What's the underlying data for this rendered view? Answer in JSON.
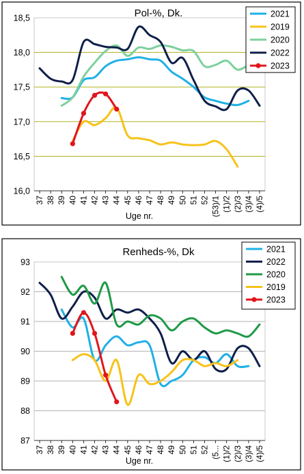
{
  "chart_data": [
    {
      "type": "line",
      "title": "Pol-%, Dk.",
      "xlabel": "Uge nr.",
      "ylabel": "",
      "categories": [
        "37",
        "38",
        "39",
        "40",
        "41",
        "42",
        "43",
        "44",
        "45",
        "46",
        "47",
        "48",
        "49",
        "50",
        "51",
        "52",
        "(53)/1",
        "(1)/2",
        "(2)/3",
        "(3)/4",
        "(4)/5"
      ],
      "ylim": [
        16.0,
        18.5
      ],
      "yticks": [
        "16,0",
        "16,5",
        "17,0",
        "17,5",
        "18,0",
        "18,5"
      ],
      "ytick_values": [
        16.0,
        16.5,
        17.0,
        17.5,
        18.0,
        18.5
      ],
      "grid": "horizontal, olive",
      "legend": "top-right",
      "series": [
        {
          "name": "2021",
          "color": "#1fb0e6",
          "marker": false,
          "values": [
            null,
            null,
            17.34,
            17.35,
            17.6,
            17.64,
            17.8,
            17.88,
            17.9,
            17.93,
            17.9,
            17.88,
            17.72,
            17.62,
            17.5,
            17.35,
            17.3,
            17.26,
            17.24,
            17.3,
            null
          ]
        },
        {
          "name": "2019",
          "color": "#f7c21a",
          "marker": false,
          "values": [
            null,
            null,
            null,
            16.72,
            17.0,
            16.95,
            17.05,
            17.2,
            16.8,
            16.76,
            16.73,
            16.67,
            16.7,
            16.67,
            16.66,
            16.67,
            16.72,
            16.6,
            16.35,
            null,
            null
          ]
        },
        {
          "name": "2020",
          "color": "#7dd09c",
          "marker": false,
          "values": [
            null,
            null,
            17.23,
            17.35,
            17.65,
            17.85,
            18.02,
            18.1,
            17.95,
            18.07,
            18.05,
            18.1,
            18.08,
            18.03,
            18.02,
            17.8,
            17.82,
            17.88,
            17.75,
            17.82,
            null
          ]
        },
        {
          "name": "2022",
          "color": "#0f1f4a",
          "marker": false,
          "values": [
            17.77,
            17.62,
            17.58,
            17.6,
            18.15,
            18.12,
            18.08,
            18.07,
            18.05,
            18.37,
            18.25,
            18.15,
            17.85,
            17.92,
            17.6,
            17.3,
            17.22,
            17.18,
            17.45,
            17.45,
            17.23
          ]
        },
        {
          "name": "2023",
          "color": "#e0161c",
          "marker": true,
          "values": [
            null,
            null,
            null,
            16.68,
            17.12,
            17.38,
            17.4,
            17.18,
            null,
            null,
            null,
            null,
            null,
            null,
            null,
            null,
            null,
            null,
            null,
            null,
            null
          ]
        }
      ]
    },
    {
      "type": "line",
      "title": "Renheds-%, Dk",
      "xlabel": "Uge nr.",
      "ylabel": "",
      "categories": [
        "37",
        "38",
        "39",
        "40",
        "41",
        "42",
        "43",
        "44",
        "45",
        "46",
        "47",
        "48",
        "49",
        "50",
        "51",
        "52",
        "(5...",
        "(1)/2",
        "(2)/3",
        "(3)/4",
        "(4)/5"
      ],
      "ylim": [
        87,
        93
      ],
      "yticks": [
        "87",
        "88",
        "89",
        "90",
        "91",
        "92",
        "93"
      ],
      "ytick_values": [
        87,
        88,
        89,
        90,
        91,
        92,
        93
      ],
      "grid": "horizontal, grey",
      "legend": "top-right",
      "series": [
        {
          "name": "2021",
          "color": "#1fb0e6",
          "marker": false,
          "values": [
            null,
            null,
            91.4,
            90.8,
            91.1,
            89.7,
            90.2,
            90.5,
            90.2,
            90.3,
            90.2,
            88.9,
            89.0,
            89.2,
            89.7,
            89.8,
            89.6,
            89.9,
            89.5,
            89.5,
            null
          ]
        },
        {
          "name": "2022",
          "color": "#0f1f4a",
          "marker": false,
          "values": [
            92.3,
            91.9,
            91.1,
            91.5,
            92.0,
            91.8,
            91.1,
            91.4,
            91.3,
            91.4,
            91.1,
            90.6,
            89.6,
            90.0,
            89.7,
            90.0,
            89.4,
            89.4,
            90.1,
            90.1,
            89.5
          ]
        },
        {
          "name": "2020",
          "color": "#1e9a47",
          "marker": false,
          "values": [
            null,
            null,
            92.5,
            91.9,
            92.2,
            91.6,
            92.3,
            90.9,
            91.0,
            90.9,
            91.2,
            91.1,
            90.7,
            91.0,
            91.1,
            90.8,
            90.6,
            90.7,
            90.6,
            90.5,
            90.9
          ]
        },
        {
          "name": "2019",
          "color": "#f7c21a",
          "marker": false,
          "values": [
            null,
            null,
            null,
            89.7,
            89.9,
            89.7,
            89.0,
            89.7,
            88.2,
            89.2,
            88.9,
            89.0,
            89.3,
            89.7,
            89.7,
            89.5,
            89.6,
            89.5,
            89.7,
            null,
            null
          ]
        },
        {
          "name": "2023",
          "color": "#e0161c",
          "marker": true,
          "values": [
            null,
            null,
            null,
            90.6,
            91.3,
            90.6,
            89.2,
            88.3,
            null,
            null,
            null,
            null,
            null,
            null,
            null,
            null,
            null,
            null,
            null,
            null,
            null
          ]
        }
      ]
    }
  ]
}
